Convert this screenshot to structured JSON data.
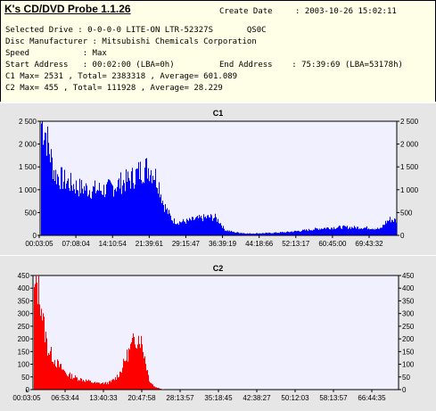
{
  "header": {
    "app_title": "K's CD/DVD Probe 1.1.26",
    "create_date_label": "Create Date",
    "create_date_value": ": 2003-10-26 15:02:11",
    "selected_drive": "Selected Drive : 0-0-0-0 LITE-ON LTR-52327S       QS0C",
    "disc_manufacturer": "Disc Manufacturer : Mitsubishi Chemicals Corporation",
    "speed": "Speed           : Max",
    "start_address": "Start Address   : 00:02:00 (LBA=0h)",
    "end_address": "End Address    : 75:39:69 (LBA=53178h)",
    "c1_stats": "C1 Max= 2531 , Total= 2383318 , Average= 601.089",
    "c2_stats": "C2 Max= 455 , Total= 111928 , Average= 28.229"
  },
  "colors": {
    "c1": "#0000ff",
    "c2": "#ff0000",
    "plot_bg": "#f0f0ff",
    "panel_bg": "#e6e6e6"
  },
  "chart_data": [
    {
      "type": "area",
      "title": "C1",
      "x_tick_labels": [
        "00:03:05",
        "07:08:04",
        "14:10:54",
        "21:39:61",
        "29:15:47",
        "36:39:19",
        "44:18:66",
        "52:13:17",
        "60:45:00",
        "69:43:32"
      ],
      "y_tick_labels": [
        "2 500",
        "2 000",
        "1 500",
        "1 000",
        "500",
        "0"
      ],
      "ylim": [
        0,
        2500
      ],
      "x_minutes": [
        0,
        1,
        2,
        3,
        5,
        8,
        11,
        14,
        17,
        19,
        21,
        22,
        23,
        24,
        25,
        26,
        27,
        28,
        29,
        31,
        33,
        35,
        36,
        37,
        38,
        39,
        41,
        44,
        48,
        52,
        56,
        60,
        64,
        68,
        70,
        72,
        73,
        74,
        75.5
      ],
      "values": [
        2500,
        2300,
        1800,
        1350,
        1200,
        1050,
        1000,
        1000,
        1150,
        1220,
        1400,
        1460,
        1480,
        1370,
        1150,
        700,
        500,
        330,
        290,
        310,
        360,
        390,
        400,
        390,
        290,
        120,
        70,
        40,
        50,
        70,
        110,
        160,
        180,
        170,
        160,
        140,
        280,
        350,
        320
      ],
      "color": "#0000ff"
    },
    {
      "type": "area",
      "title": "C2",
      "x_tick_labels": [
        "00:03:05",
        "06:53:44",
        "13:40:33",
        "20:47:58",
        "28:13:57",
        "35:18:45",
        "42:38:27",
        "50:12:03",
        "58:13:57",
        "66:44:35"
      ],
      "y_tick_labels": [
        "450",
        "400",
        "350",
        "300",
        "250",
        "200",
        "150",
        "100",
        "50",
        "0"
      ],
      "ylim": [
        0,
        450
      ],
      "x_minutes": [
        0,
        0.5,
        1,
        1.5,
        2,
        3,
        5,
        7,
        9,
        11,
        13,
        15,
        16,
        17,
        18,
        19,
        20,
        21,
        22,
        22.8,
        23.5,
        24,
        25,
        26,
        27,
        75.5
      ],
      "values": [
        330,
        430,
        400,
        360,
        270,
        160,
        100,
        60,
        45,
        35,
        25,
        25,
        30,
        45,
        70,
        120,
        160,
        200,
        210,
        150,
        80,
        35,
        12,
        5,
        0,
        0
      ],
      "color": "#ff0000"
    }
  ]
}
